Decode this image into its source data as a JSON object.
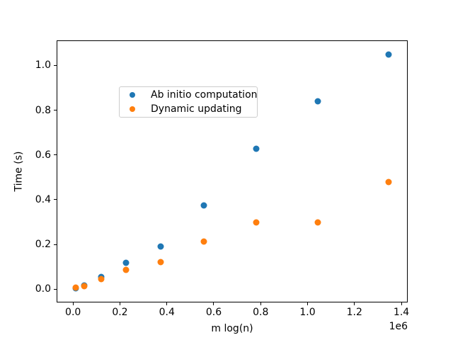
{
  "chart_data": {
    "type": "scatter",
    "title": "",
    "xlabel": "m log(n)",
    "ylabel": "Time (s)",
    "x_offset_label": "1e6",
    "xlim": [
      -70000,
      1427000
    ],
    "ylim": [
      -0.059,
      1.112
    ],
    "x_ticks": [
      0,
      200000,
      400000,
      600000,
      800000,
      1000000,
      1200000,
      1400000
    ],
    "x_tick_labels": [
      "0.0",
      "0.2",
      "0.4",
      "0.6",
      "0.8",
      "1.0",
      "1.2",
      "1.4"
    ],
    "y_ticks": [
      0,
      0.2,
      0.4,
      0.6,
      0.8,
      1.0
    ],
    "y_tick_labels": [
      "0.0",
      "0.2",
      "0.4",
      "0.6",
      "0.8",
      "1.0"
    ],
    "grid": false,
    "legend_position": "upper left",
    "series": [
      {
        "name": "Ab initio computation",
        "color": "#1f77b4",
        "x": [
          10000,
          48000,
          121000,
          225000,
          375000,
          558000,
          780000,
          1045000,
          1347000
        ],
        "y": [
          0.003,
          0.018,
          0.056,
          0.119,
          0.192,
          0.376,
          0.627,
          0.841,
          1.048
        ]
      },
      {
        "name": "Dynamic updating",
        "color": "#ff7f0e",
        "x": [
          10000,
          48000,
          121000,
          225000,
          375000,
          558000,
          780000,
          1045000,
          1347000
        ],
        "y": [
          0.006,
          0.015,
          0.045,
          0.086,
          0.121,
          0.212,
          0.299,
          0.299,
          0.479
        ]
      }
    ]
  }
}
